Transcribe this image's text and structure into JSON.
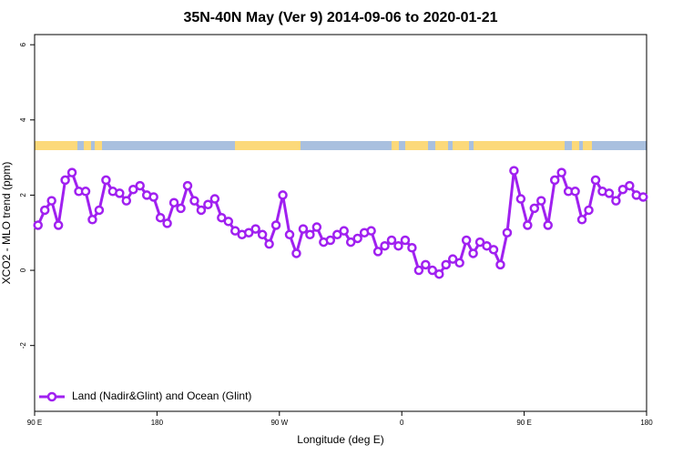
{
  "chart_data": {
    "type": "line",
    "title": "35N-40N May (Ver 9)   2014-09-06 to 2020-01-21",
    "xlabel": "Longitude (deg E)",
    "ylabel": "XCO2 - MLO trend (ppm)",
    "x": [
      92.5,
      97.5,
      102.5,
      107.5,
      112.5,
      117.5,
      122.5,
      127.5,
      132.5,
      137.5,
      142.5,
      147.5,
      152.5,
      157.5,
      162.5,
      167.5,
      172.5,
      177.5,
      182.5,
      187.5,
      192.5,
      197.5,
      202.5,
      207.5,
      212.5,
      217.5,
      222.5,
      227.5,
      232.5,
      237.5,
      242.5,
      247.5,
      252.5,
      257.5,
      262.5,
      267.5,
      272.5,
      277.5,
      282.5,
      287.5,
      292.5,
      297.5,
      302.5,
      307.5,
      312.5,
      317.5,
      322.5,
      327.5,
      332.5,
      337.5,
      342.5,
      347.5,
      352.5,
      357.5,
      362.5,
      367.5,
      372.5,
      377.5,
      382.5,
      387.5,
      392.5,
      397.5,
      402.5,
      407.5,
      412.5,
      417.5,
      422.5,
      427.5,
      432.5,
      437.5,
      442.5,
      447.5,
      452.5,
      457.5,
      462.5,
      467.5,
      472.5,
      477.5,
      482.5,
      487.5,
      492.5,
      497.5,
      502.5,
      507.5,
      512.5,
      517.5,
      522.5,
      527.5,
      532.5,
      537.5
    ],
    "series": [
      {
        "name": "Land (Nadir&Glint) and Ocean (Glint)",
        "color": "#a020f0",
        "values": [
          1.2,
          1.6,
          1.85,
          1.2,
          2.4,
          2.6,
          2.1,
          2.1,
          1.35,
          1.6,
          2.4,
          2.1,
          2.05,
          1.85,
          2.15,
          2.25,
          2.0,
          1.95,
          1.4,
          1.25,
          1.8,
          1.65,
          2.25,
          1.85,
          1.6,
          1.75,
          1.9,
          1.4,
          1.3,
          1.05,
          0.95,
          1.0,
          1.1,
          0.95,
          0.7,
          1.2,
          2.0,
          0.95,
          0.45,
          1.1,
          0.95,
          1.15,
          0.75,
          0.8,
          0.95,
          1.05,
          0.75,
          0.85,
          1.0,
          1.05,
          0.5,
          0.65,
          0.8,
          0.65,
          0.8,
          0.6,
          0.0,
          0.15,
          0.0,
          -0.1,
          0.15,
          0.3,
          0.2,
          0.8,
          0.45,
          0.75,
          0.65,
          0.55,
          0.15,
          1.0,
          2.65,
          1.9,
          1.2,
          1.65,
          1.85,
          1.2,
          2.4,
          2.6,
          2.1,
          2.1,
          1.35,
          1.6,
          2.4,
          2.1,
          2.05,
          1.85,
          2.15,
          2.25,
          2.0,
          1.95
        ]
      }
    ],
    "xlim": [
      90,
      540
    ],
    "xticks": [
      {
        "value": 90,
        "label": "90 E"
      },
      180,
      {
        "value": 270,
        "label": "90 W"
      },
      {
        "value": 360,
        "label": "0"
      },
      {
        "value": 450,
        "label": "90 E"
      },
      {
        "value": 540,
        "label": "180"
      }
    ],
    "ylim": [
      -3.75,
      6.27
    ],
    "yticks": [
      -2,
      0,
      2,
      4,
      6
    ],
    "legend": "bottom-left"
  }
}
